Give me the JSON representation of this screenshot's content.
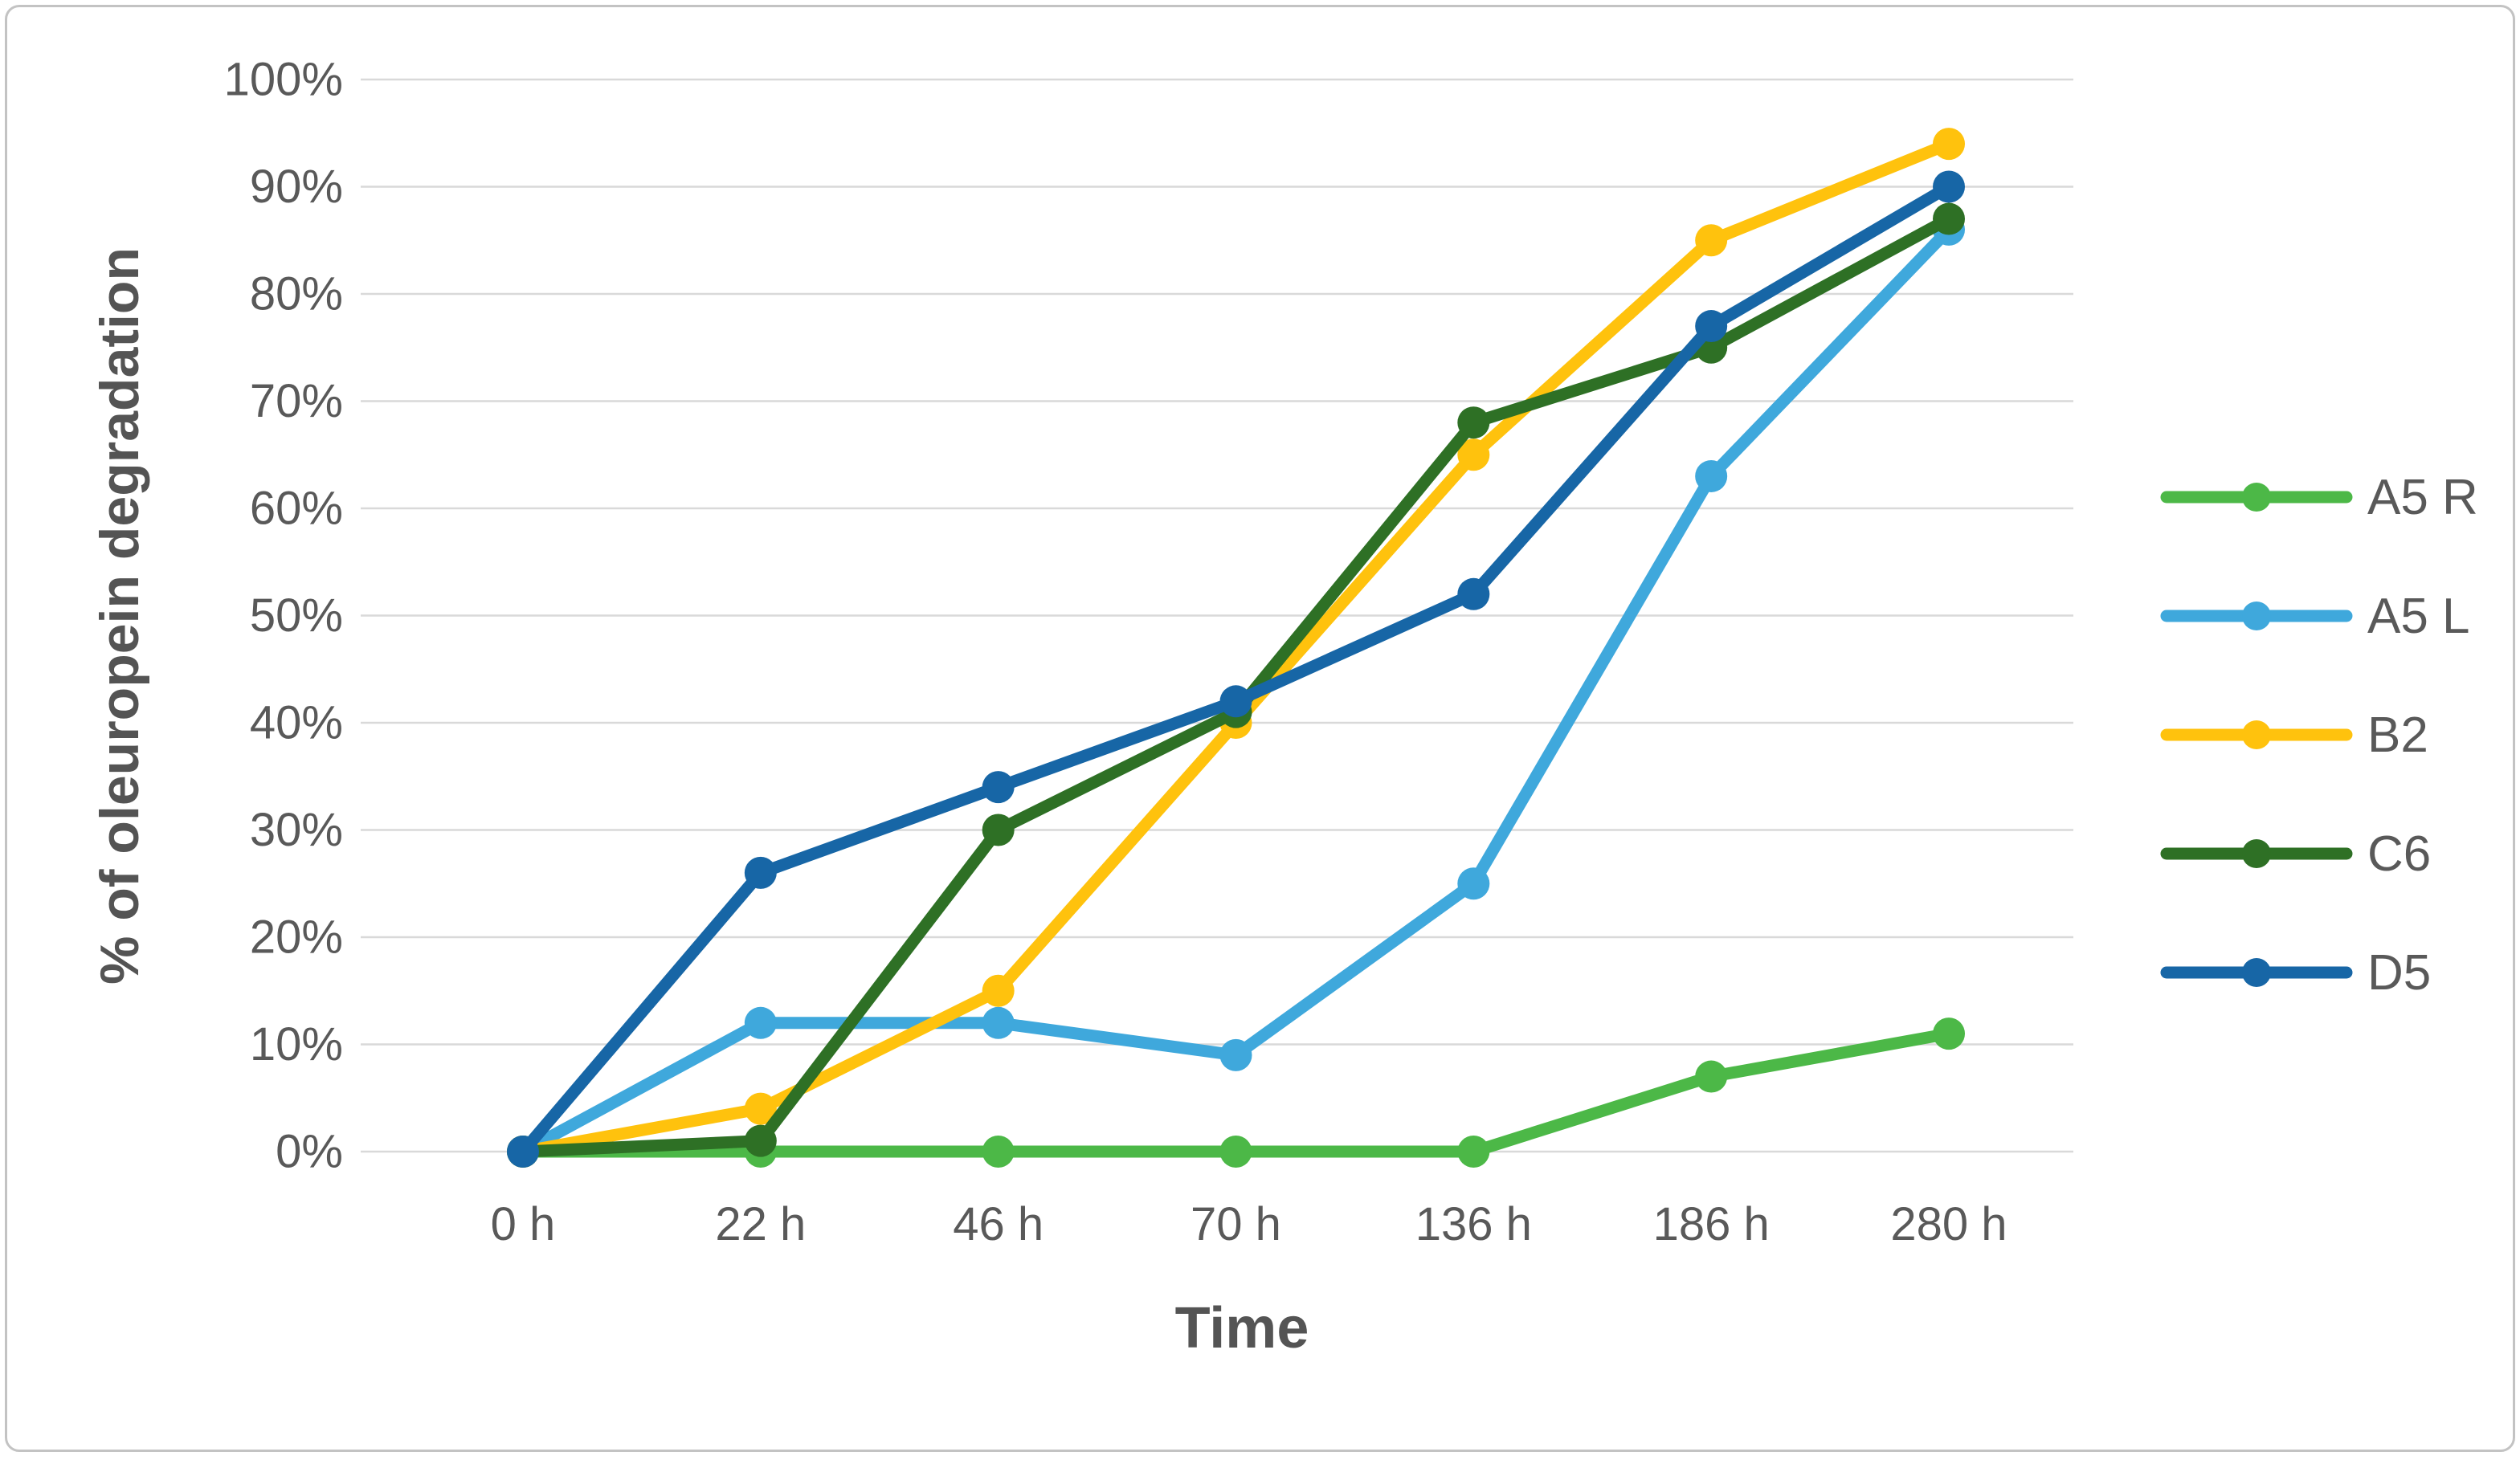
{
  "figure": {
    "background": "#ffffff",
    "border_color": "#c3c3c3"
  },
  "chart_data": {
    "type": "line",
    "title": "",
    "xlabel": "Time",
    "ylabel": "% of oleuropein degradation",
    "categories": [
      "0 h",
      "22 h",
      "46 h",
      "70 h",
      "136 h",
      "186 h",
      "280 h"
    ],
    "y_tick_labels": [
      "0%",
      "10%",
      "20%",
      "30%",
      "40%",
      "50%",
      "60%",
      "70%",
      "80%",
      "90%",
      "100%"
    ],
    "ylim": [
      0,
      100
    ],
    "grid": true,
    "legend_position": "right",
    "series": [
      {
        "name": "A5 R",
        "color": "#4cb847",
        "values": [
          0,
          0,
          0,
          0,
          0,
          7,
          11
        ]
      },
      {
        "name": "A5 L",
        "color": "#3fa8dc",
        "values": [
          0,
          12,
          12,
          9,
          25,
          63,
          86
        ]
      },
      {
        "name": "B2",
        "color": "#ffc20d",
        "values": [
          0,
          4,
          15,
          40,
          65,
          85,
          94
        ]
      },
      {
        "name": "C6",
        "color": "#2e7025",
        "values": [
          0,
          1,
          30,
          41,
          68,
          75,
          87
        ]
      },
      {
        "name": "D5",
        "color": "#1766a6",
        "values": [
          0,
          26,
          34,
          42,
          52,
          77,
          90
        ]
      }
    ],
    "colors": {
      "grid": "#d9d9d9",
      "tick_text": "#595959",
      "axis_title_text": "#545454"
    }
  }
}
